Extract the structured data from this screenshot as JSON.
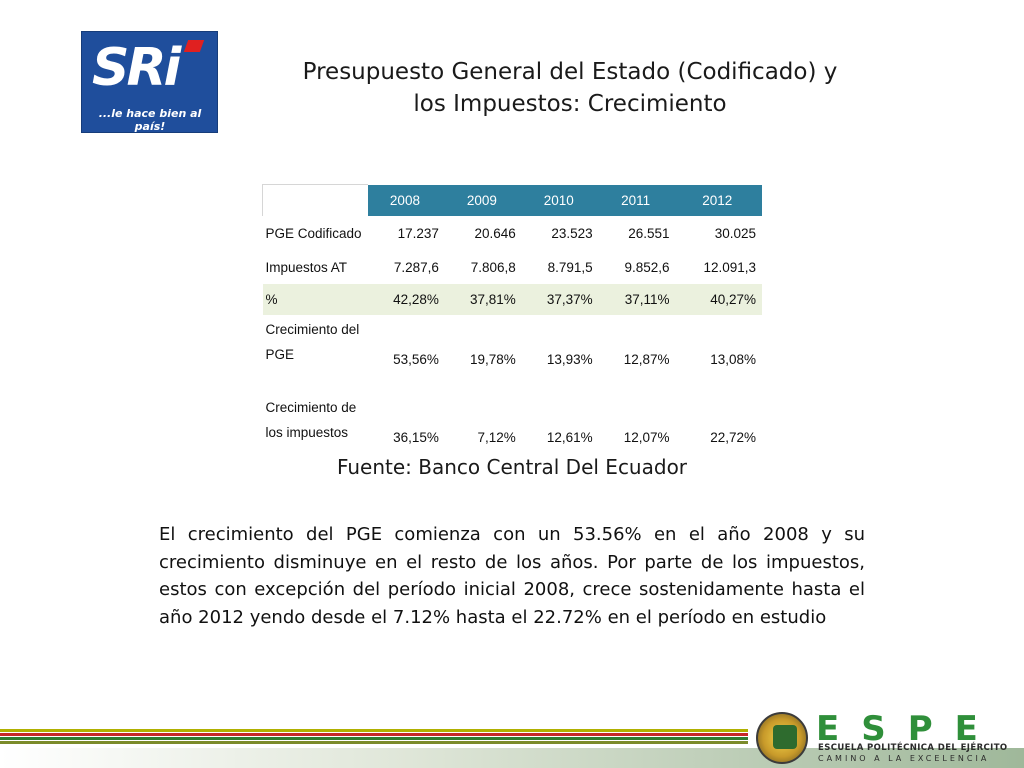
{
  "logo": {
    "brand": "SRi",
    "tagline": "...le hace bien al país!"
  },
  "title": {
    "line1": "Presupuesto General del Estado (Codificado) y",
    "line2": "los Impuestos: Crecimiento"
  },
  "table": {
    "years": [
      "2008",
      "2009",
      "2010",
      "2011",
      "2012"
    ],
    "rows": [
      {
        "label": "PGE Codificado",
        "values": [
          "17.237",
          "20.646",
          "23.523",
          "26.551",
          "30.025"
        ]
      },
      {
        "label": "Impuestos AT",
        "values": [
          "7.287,6",
          "7.806,8",
          "8.791,5",
          "9.852,6",
          "12.091,3"
        ]
      },
      {
        "label": "%",
        "values": [
          "42,28%",
          "37,81%",
          "37,37%",
          "37,11%",
          "40,27%"
        ]
      },
      {
        "label": "Crecimiento del PGE",
        "values": [
          "53,56%",
          "19,78%",
          "13,93%",
          "12,87%",
          "13,08%"
        ]
      },
      {
        "label": "Crecimiento de los impuestos",
        "values": [
          "36,15%",
          "7,12%",
          "12,61%",
          "12,07%",
          "22,72%"
        ]
      }
    ],
    "header_color": "#2e7f9e",
    "highlight_row_color": "#ebf1de"
  },
  "source": "Fuente: Banco Central Del Ecuador",
  "paragraph": "El crecimiento del PGE comienza con un 53.56% en el año 2008 y su crecimiento disminuye en el resto de los años. Por parte de los impuestos, estos con excepción del período inicial 2008, crece sostenidamente hasta el año 2012 yendo desde el 7.12% hasta el 22.72% en el período en estudio",
  "footer": {
    "letters": "ESPE",
    "line1": "ESCUELA POLITÉCNICA DEL EJÉRCITO",
    "line2": "CAMINO A LA EXCELENCIA",
    "stripe_colors": [
      "#b0b000",
      "#c62828",
      "#2e7d32",
      "#7b8b2a"
    ]
  }
}
